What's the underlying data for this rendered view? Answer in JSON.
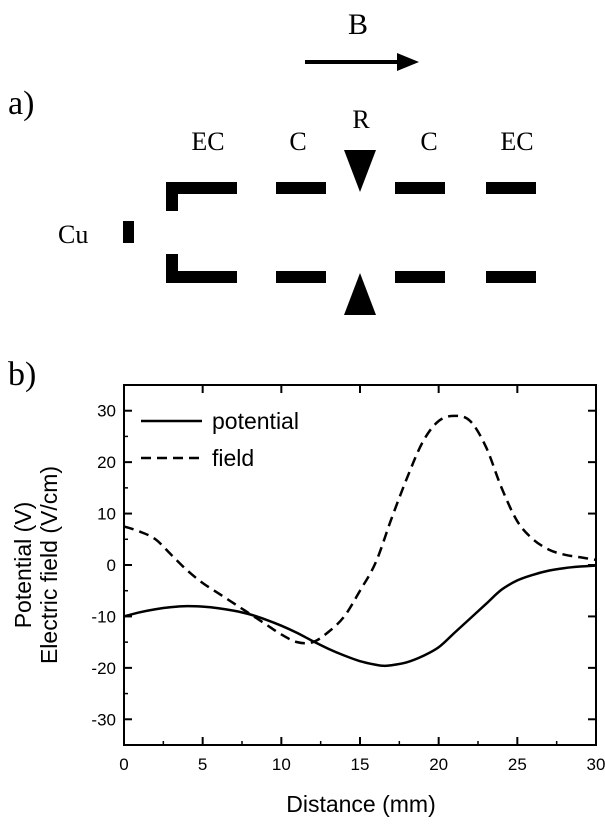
{
  "panel_a": {
    "label": "a)",
    "field_label": "B",
    "cu_label": "Cu",
    "region_labels": [
      "EC",
      "C",
      "R",
      "C",
      "EC"
    ]
  },
  "panel_b": {
    "label": "b)"
  },
  "chart_data": {
    "type": "line",
    "xlabel": "Distance (mm)",
    "ylabel": [
      "Potential (V)",
      "Electric field (V/cm)"
    ],
    "xlim": [
      0,
      30
    ],
    "ylim": [
      -35,
      35
    ],
    "x_ticks": [
      0,
      5,
      10,
      15,
      20,
      25,
      30
    ],
    "y_ticks": [
      -30,
      -20,
      -10,
      0,
      10,
      20,
      30
    ],
    "grid": false,
    "legend_position": "top-left",
    "series": [
      {
        "name": "potential",
        "style": "solid",
        "color": "#000000",
        "x": [
          0,
          1,
          2,
          3,
          4,
          5,
          6,
          7,
          8,
          9,
          10,
          11,
          12,
          13,
          14,
          15,
          16,
          16.5,
          17,
          18,
          19,
          20,
          21,
          22,
          23,
          24,
          25,
          26,
          27,
          28,
          29,
          30
        ],
        "y": [
          -10,
          -9.2,
          -8.6,
          -8.2,
          -8.0,
          -8.1,
          -8.4,
          -8.9,
          -9.6,
          -10.6,
          -11.8,
          -13.2,
          -14.8,
          -16.3,
          -17.6,
          -18.7,
          -19.4,
          -19.6,
          -19.5,
          -18.9,
          -17.7,
          -16.0,
          -13.2,
          -10.4,
          -7.6,
          -4.8,
          -3.0,
          -1.9,
          -1.1,
          -0.6,
          -0.3,
          -0.1
        ]
      },
      {
        "name": "field",
        "style": "dashed",
        "color": "#000000",
        "x": [
          0,
          1,
          2,
          3,
          4,
          5,
          6,
          7,
          8,
          9,
          10,
          11,
          12,
          13,
          14,
          15,
          16,
          17,
          18,
          19,
          20,
          21,
          22,
          23,
          24,
          25,
          26,
          27,
          28,
          29,
          30
        ],
        "y": [
          7.5,
          6.5,
          5.0,
          2.0,
          -1.0,
          -3.5,
          -5.5,
          -7.5,
          -9.5,
          -11.5,
          -13.5,
          -15.0,
          -15.0,
          -13.0,
          -10.0,
          -5.0,
          0.5,
          9.0,
          17.0,
          24.0,
          28.0,
          29.0,
          28.0,
          23.0,
          15.0,
          8.5,
          5.0,
          3.0,
          2.0,
          1.5,
          1.0
        ]
      }
    ]
  }
}
